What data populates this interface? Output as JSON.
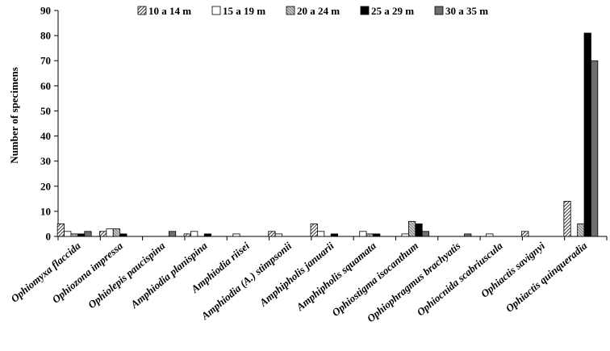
{
  "chart_data": {
    "type": "bar",
    "ylabel": "Number of specimens",
    "xlabel": "",
    "ylim": [
      0,
      90
    ],
    "yticks": [
      0,
      10,
      20,
      30,
      40,
      50,
      60,
      70,
      80,
      90
    ],
    "grid": false,
    "legend_position": "top",
    "categories": [
      "Ophiomyxa flaccida",
      "Ophiozona impressa",
      "Ophiolepis paucispina",
      "Amphiodia planispina",
      "Amphiodia riisei",
      "Amphiodia (A.) stimpsonii",
      "Amphipholis januarii",
      "Amphipholis squamata",
      "Ophiostigma isocanthum",
      "Ophiophragmus brachyatis",
      "Ophiocnida scabriuscula",
      "Ophiactis savignyi",
      "Ophiactis quinqueradia"
    ],
    "series": [
      {
        "name": "10 a 14 m",
        "pattern": "diagonal",
        "color": "#ffffff",
        "values": [
          5,
          2,
          0,
          1,
          0,
          2,
          5,
          0,
          0,
          0,
          0,
          2,
          14
        ]
      },
      {
        "name": "15 a 19 m",
        "pattern": "solid",
        "color": "#ffffff",
        "values": [
          2,
          3,
          0,
          2,
          1,
          1,
          2,
          2,
          1,
          0,
          1,
          0,
          0
        ]
      },
      {
        "name": "20 a 24 m",
        "pattern": "hatch",
        "color": "#888888",
        "values": [
          1,
          3,
          0,
          0,
          0,
          0,
          0,
          1,
          6,
          0,
          0,
          0,
          5
        ]
      },
      {
        "name": "25 a 29 m",
        "pattern": "solid",
        "color": "#000000",
        "values": [
          1,
          1,
          0,
          1,
          0,
          0,
          1,
          1,
          5,
          0,
          0,
          0,
          81
        ]
      },
      {
        "name": "30 a 35 m",
        "pattern": "solid",
        "color": "#6e6e6e",
        "values": [
          2,
          0,
          2,
          0,
          0,
          0,
          0,
          0,
          2,
          1,
          0,
          0,
          70
        ]
      }
    ]
  }
}
